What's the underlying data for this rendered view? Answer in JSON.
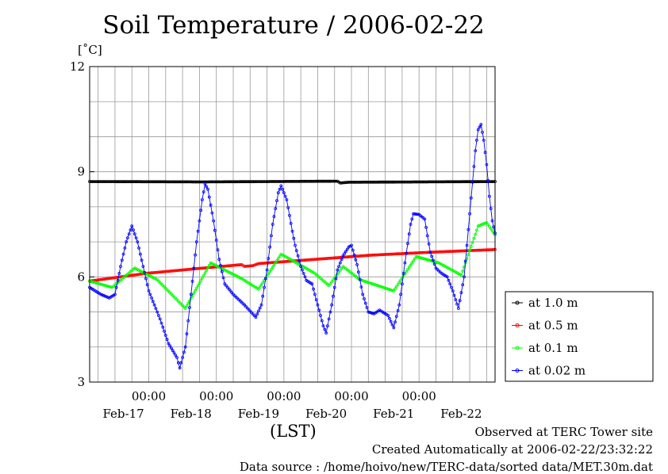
{
  "chart_data": {
    "type": "line",
    "title": "Soil Temperature / 2006-02-22",
    "ylabel": "[˚C]",
    "xlabel": "(LST)",
    "ylim": [
      3,
      12
    ],
    "yticks": [
      "3",
      "6",
      "9",
      "12"
    ],
    "xlim": [
      0,
      144
    ],
    "time_ticks": [
      {
        "x": 21,
        "label": "00:00"
      },
      {
        "x": 45,
        "label": "00:00"
      },
      {
        "x": 69,
        "label": "00:00"
      },
      {
        "x": 93,
        "label": "00:00"
      },
      {
        "x": 117,
        "label": "00:00"
      }
    ],
    "date_ticks": [
      {
        "x": 12,
        "label": "Feb-17"
      },
      {
        "x": 36,
        "label": "Feb-18"
      },
      {
        "x": 60,
        "label": "Feb-19"
      },
      {
        "x": 84,
        "label": "Feb-20"
      },
      {
        "x": 108,
        "label": "Feb-21"
      },
      {
        "x": 132,
        "label": "Feb-22"
      }
    ],
    "grid": true,
    "legend_position": "right",
    "series": [
      {
        "name": "at 1.0 m",
        "color": "#000000",
        "points": [
          [
            0,
            8.72
          ],
          [
            40,
            8.71
          ],
          [
            88,
            8.73
          ],
          [
            89,
            8.68
          ],
          [
            92,
            8.7
          ],
          [
            144,
            8.72
          ]
        ]
      },
      {
        "name": "at 0.5 m",
        "color": "#ff0000",
        "points": [
          [
            0,
            5.88
          ],
          [
            20,
            6.1
          ],
          [
            40,
            6.25
          ],
          [
            54,
            6.35
          ],
          [
            55,
            6.3
          ],
          [
            58,
            6.32
          ],
          [
            60,
            6.38
          ],
          [
            80,
            6.5
          ],
          [
            100,
            6.62
          ],
          [
            120,
            6.7
          ],
          [
            144,
            6.78
          ]
        ]
      },
      {
        "name": "at 0.1 m",
        "color": "#00ff00",
        "points": [
          [
            0,
            5.88
          ],
          [
            8,
            5.7
          ],
          [
            16,
            6.25
          ],
          [
            24,
            5.92
          ],
          [
            34,
            5.1
          ],
          [
            43,
            6.4
          ],
          [
            54,
            5.95
          ],
          [
            60,
            5.65
          ],
          [
            68,
            6.65
          ],
          [
            80,
            6.1
          ],
          [
            85,
            5.75
          ],
          [
            90,
            6.3
          ],
          [
            96,
            5.92
          ],
          [
            108,
            5.6
          ],
          [
            116,
            6.58
          ],
          [
            124,
            6.4
          ],
          [
            132,
            6.05
          ],
          [
            138,
            7.45
          ],
          [
            141,
            7.55
          ],
          [
            144,
            7.2
          ]
        ]
      },
      {
        "name": "at 0.02 m",
        "color": "#0000ff",
        "points": [
          [
            0,
            5.7
          ],
          [
            4,
            5.5
          ],
          [
            7,
            5.4
          ],
          [
            9,
            5.5
          ],
          [
            11,
            6.3
          ],
          [
            13,
            7.0
          ],
          [
            15,
            7.45
          ],
          [
            17,
            7.0
          ],
          [
            19,
            6.3
          ],
          [
            21,
            5.6
          ],
          [
            25,
            4.8
          ],
          [
            28,
            4.1
          ],
          [
            31,
            3.7
          ],
          [
            32,
            3.4
          ],
          [
            34,
            4.0
          ],
          [
            36,
            5.5
          ],
          [
            38,
            7.0
          ],
          [
            40,
            8.2
          ],
          [
            41,
            8.65
          ],
          [
            42,
            8.5
          ],
          [
            44,
            7.6
          ],
          [
            46,
            6.5
          ],
          [
            48,
            5.8
          ],
          [
            51,
            5.5
          ],
          [
            55,
            5.2
          ],
          [
            59,
            4.85
          ],
          [
            61,
            5.2
          ],
          [
            63,
            6.2
          ],
          [
            65,
            7.5
          ],
          [
            67,
            8.4
          ],
          [
            68,
            8.6
          ],
          [
            70,
            8.2
          ],
          [
            72,
            7.3
          ],
          [
            73,
            6.9
          ],
          [
            75,
            6.3
          ],
          [
            77,
            5.9
          ],
          [
            79,
            5.8
          ],
          [
            81,
            5.2
          ],
          [
            83,
            4.6
          ],
          [
            84,
            4.4
          ],
          [
            86,
            5.2
          ],
          [
            88,
            6.2
          ],
          [
            90,
            6.6
          ],
          [
            92,
            6.85
          ],
          [
            93,
            6.9
          ],
          [
            95,
            6.35
          ],
          [
            97,
            5.5
          ],
          [
            99,
            5.0
          ],
          [
            101,
            4.95
          ],
          [
            103,
            5.05
          ],
          [
            106,
            4.9
          ],
          [
            108,
            4.55
          ],
          [
            110,
            5.2
          ],
          [
            112,
            6.4
          ],
          [
            114,
            7.5
          ],
          [
            115,
            7.8
          ],
          [
            117,
            7.78
          ],
          [
            119,
            7.65
          ],
          [
            121,
            6.7
          ],
          [
            123,
            6.25
          ],
          [
            125,
            6.1
          ],
          [
            127,
            6.0
          ],
          [
            129,
            5.6
          ],
          [
            131,
            5.1
          ],
          [
            133,
            6.0
          ],
          [
            135,
            7.8
          ],
          [
            137,
            9.6
          ],
          [
            138,
            10.2
          ],
          [
            139,
            10.35
          ],
          [
            140,
            9.9
          ],
          [
            141,
            9.2
          ],
          [
            142,
            8.3
          ],
          [
            143,
            7.6
          ],
          [
            144,
            7.25
          ]
        ]
      }
    ]
  },
  "footer": {
    "line1": "Observed at TERC Tower site",
    "line2": "Created Automatically at 2006-02-22/23:32:22",
    "line3": "Data source : /home/hoivo/new/TERC-data/sorted  data/MET.30m.dat"
  }
}
